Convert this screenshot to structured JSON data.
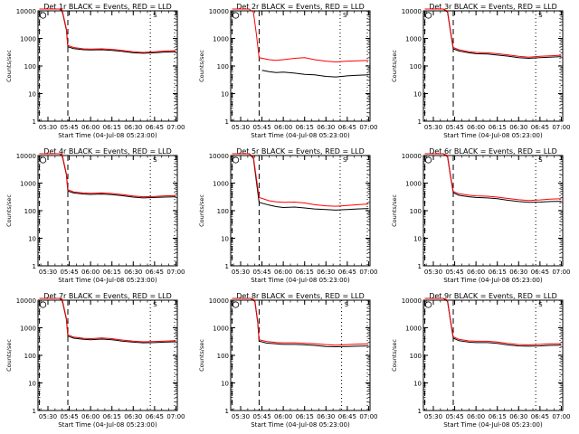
{
  "chart_data": [
    {
      "type": "line",
      "title": "Det 1r BLACK = Events, RED = LLD",
      "ylabel": "Counts/sec",
      "xlabel": "Start Time (04-Jul-08 05:23:00)",
      "yscale": "log",
      "ylim": [
        1,
        10000
      ],
      "yticks": [
        "1",
        "10",
        "100",
        "1000",
        "10000"
      ],
      "xticks": [
        "05:30",
        "05:45",
        "06:00",
        "06:15",
        "06:30",
        "06:45",
        "07:00"
      ],
      "markers": {
        "saa_end": "05:44",
        "saa_start": "06:42",
        "label": "S"
      },
      "series": [
        {
          "color": "#000000",
          "x": [
            "05:24",
            "05:30",
            "05:38",
            "05:40",
            "05:43",
            "05:44",
            "05:48",
            "05:55",
            "06:00",
            "06:08",
            "06:15",
            "06:22",
            "06:30",
            "06:37",
            "06:45",
            "06:52",
            "07:00"
          ],
          "y": [
            12000,
            12000,
            12000,
            10000,
            2000,
            500,
            430,
            390,
            380,
            390,
            370,
            340,
            300,
            290,
            300,
            320,
            330
          ]
        },
        {
          "color": "#ff0000",
          "x": [
            "05:24",
            "05:30",
            "05:38",
            "05:40",
            "05:43",
            "05:44",
            "05:48",
            "05:55",
            "06:00",
            "06:08",
            "06:15",
            "06:22",
            "06:30",
            "06:37",
            "06:45",
            "06:52",
            "07:00"
          ],
          "y": [
            12000,
            12000,
            12000,
            11000,
            2200,
            560,
            470,
            420,
            410,
            420,
            400,
            370,
            330,
            310,
            330,
            350,
            360
          ]
        }
      ]
    },
    {
      "type": "line",
      "title": "Det 2r BLACK = Events, RED = LLD",
      "ylabel": "Counts/sec",
      "xlabel": "Start Time (04-Jul-08 05:23:00)",
      "yscale": "log",
      "ylim": [
        1,
        10000
      ],
      "yticks": [
        "1",
        "10",
        "100",
        "1000",
        "10000"
      ],
      "xticks": [
        "05:30",
        "05:45",
        "06:00",
        "06:15",
        "06:30",
        "06:45",
        "07:00"
      ],
      "markers": {
        "saa_end": "05:43",
        "saa_start": "06:40",
        "label": "S"
      },
      "series": [
        {
          "color": "#000000",
          "x": [
            "05:45",
            "05:50",
            "05:55",
            "06:00",
            "06:08",
            "06:15",
            "06:22",
            "06:30",
            "06:37",
            "06:45",
            "06:52",
            "07:00"
          ],
          "y": [
            70,
            62,
            58,
            60,
            55,
            50,
            48,
            42,
            40,
            44,
            46,
            48
          ]
        },
        {
          "color": "#ff0000",
          "x": [
            "05:24",
            "05:30",
            "05:36",
            "05:39",
            "05:41",
            "05:43",
            "05:50",
            "05:55",
            "06:00",
            "06:08",
            "06:15",
            "06:22",
            "06:30",
            "06:37",
            "06:45",
            "06:52",
            "07:00"
          ],
          "y": [
            12000,
            12000,
            12000,
            9000,
            1500,
            200,
            170,
            160,
            170,
            190,
            200,
            170,
            150,
            140,
            150,
            155,
            160
          ]
        }
      ]
    },
    {
      "type": "line",
      "title": "Det 3r BLACK = Events, RED = LLD",
      "ylabel": "Counts/sec",
      "xlabel": "Start Time (04-Jul-08 05:23:00)",
      "yscale": "log",
      "ylim": [
        1,
        10000
      ],
      "yticks": [
        "1",
        "10",
        "100",
        "1000",
        "10000"
      ],
      "xticks": [
        "05:30",
        "05:45",
        "06:00",
        "06:15",
        "06:30",
        "06:45",
        "07:00"
      ],
      "markers": {
        "saa_end": "05:44",
        "saa_start": "06:42",
        "label": "S"
      },
      "series": [
        {
          "color": "#000000",
          "x": [
            "05:24",
            "05:30",
            "05:37",
            "05:40",
            "05:42",
            "05:44",
            "05:48",
            "05:55",
            "06:00",
            "06:08",
            "06:15",
            "06:22",
            "06:30",
            "06:37",
            "06:45",
            "06:52",
            "07:00"
          ],
          "y": [
            12000,
            12000,
            12000,
            9000,
            1800,
            420,
            350,
            300,
            280,
            270,
            250,
            230,
            200,
            190,
            200,
            210,
            220
          ]
        },
        {
          "color": "#ff0000",
          "x": [
            "05:24",
            "05:30",
            "05:37",
            "05:40",
            "05:42",
            "05:44",
            "05:48",
            "05:55",
            "06:00",
            "06:08",
            "06:15",
            "06:22",
            "06:30",
            "06:37",
            "06:45",
            "06:52",
            "07:00"
          ],
          "y": [
            12000,
            12000,
            12000,
            10000,
            2000,
            470,
            390,
            330,
            310,
            300,
            280,
            255,
            225,
            210,
            225,
            235,
            245
          ]
        }
      ]
    },
    {
      "type": "line",
      "title": "Det 4r BLACK = Events, RED = LLD",
      "ylabel": "Counts/sec",
      "xlabel": "Start Time (04-Jul-08 05:23:00)",
      "yscale": "log",
      "ylim": [
        1,
        10000
      ],
      "yticks": [
        "1",
        "10",
        "100",
        "1000",
        "10000"
      ],
      "xticks": [
        "05:30",
        "05:45",
        "06:00",
        "06:15",
        "06:30",
        "06:45",
        "07:00"
      ],
      "markers": {
        "saa_end": "05:44",
        "saa_start": "06:42",
        "label": "S"
      },
      "series": [
        {
          "color": "#000000",
          "x": [
            "05:24",
            "05:30",
            "05:38",
            "05:40",
            "05:43",
            "05:44",
            "05:48",
            "05:55",
            "06:00",
            "06:08",
            "06:15",
            "06:22",
            "06:30",
            "06:37",
            "06:45",
            "06:52",
            "07:00"
          ],
          "y": [
            12000,
            12000,
            12000,
            10000,
            2000,
            520,
            440,
            400,
            390,
            400,
            380,
            350,
            310,
            290,
            300,
            310,
            320
          ]
        },
        {
          "color": "#ff0000",
          "x": [
            "05:24",
            "05:30",
            "05:38",
            "05:40",
            "05:43",
            "05:44",
            "05:48",
            "05:55",
            "06:00",
            "06:08",
            "06:15",
            "06:22",
            "06:30",
            "06:37",
            "06:45",
            "06:52",
            "07:00"
          ],
          "y": [
            12000,
            12000,
            12000,
            11000,
            2200,
            580,
            480,
            440,
            430,
            440,
            420,
            385,
            340,
            320,
            330,
            345,
            355
          ]
        }
      ]
    },
    {
      "type": "line",
      "title": "Det 5r BLACK = Events, RED = LLD",
      "ylabel": "Counts/sec",
      "xlabel": "Start Time (04-Jul-08 05:23:00)",
      "yscale": "log",
      "ylim": [
        1,
        10000
      ],
      "yticks": [
        "1",
        "10",
        "100",
        "1000",
        "10000"
      ],
      "xticks": [
        "05:30",
        "05:45",
        "06:00",
        "06:15",
        "06:30",
        "06:45",
        "07:00"
      ],
      "markers": {
        "saa_end": "05:43",
        "saa_start": "06:40",
        "label": "S"
      },
      "series": [
        {
          "color": "#000000",
          "x": [
            "05:24",
            "05:30",
            "05:36",
            "05:39",
            "05:41",
            "05:43",
            "05:50",
            "05:55",
            "06:00",
            "06:08",
            "06:15",
            "06:22",
            "06:30",
            "06:37",
            "06:45",
            "06:52",
            "07:00"
          ],
          "y": [
            12000,
            12000,
            12000,
            8000,
            1200,
            200,
            160,
            140,
            130,
            135,
            125,
            115,
            110,
            105,
            110,
            115,
            120
          ]
        },
        {
          "color": "#ff0000",
          "x": [
            "05:24",
            "05:30",
            "05:36",
            "05:39",
            "05:41",
            "05:43",
            "05:50",
            "05:55",
            "06:00",
            "06:08",
            "06:15",
            "06:22",
            "06:30",
            "06:37",
            "06:45",
            "06:52",
            "07:00"
          ],
          "y": [
            12000,
            12000,
            12000,
            9000,
            1600,
            300,
            230,
            210,
            200,
            205,
            190,
            165,
            150,
            145,
            155,
            165,
            175
          ]
        }
      ]
    },
    {
      "type": "line",
      "title": "Det 6r BLACK = Events, RED = LLD",
      "ylabel": "Counts/sec",
      "xlabel": "Start Time (04-Jul-08 05:23:00)",
      "yscale": "log",
      "ylim": [
        1,
        10000
      ],
      "yticks": [
        "1",
        "10",
        "100",
        "1000",
        "10000"
      ],
      "xticks": [
        "05:30",
        "05:45",
        "06:00",
        "06:15",
        "06:30",
        "06:45",
        "07:00"
      ],
      "markers": {
        "saa_end": "05:44",
        "saa_start": "06:42",
        "label": "S"
      },
      "series": [
        {
          "color": "#000000",
          "x": [
            "05:24",
            "05:30",
            "05:37",
            "05:40",
            "05:42",
            "05:44",
            "05:48",
            "05:55",
            "06:00",
            "06:08",
            "06:15",
            "06:22",
            "06:30",
            "06:37",
            "06:45",
            "06:52",
            "07:00"
          ],
          "y": [
            12000,
            12000,
            12000,
            9000,
            1800,
            450,
            360,
            320,
            300,
            290,
            270,
            240,
            215,
            200,
            205,
            215,
            220
          ]
        },
        {
          "color": "#ff0000",
          "x": [
            "05:24",
            "05:30",
            "05:37",
            "05:40",
            "05:42",
            "05:44",
            "05:48",
            "05:55",
            "06:00",
            "06:08",
            "06:15",
            "06:22",
            "06:30",
            "06:37",
            "06:45",
            "06:52",
            "07:00"
          ],
          "y": [
            12000,
            12000,
            12000,
            10000,
            2000,
            500,
            410,
            365,
            345,
            335,
            310,
            280,
            250,
            235,
            245,
            260,
            270
          ]
        }
      ]
    },
    {
      "type": "line",
      "title": "Det 7r BLACK = Events, RED = LLD",
      "ylabel": "Counts/sec",
      "xlabel": "Start Time (04-Jul-08 05:23:00)",
      "yscale": "log",
      "ylim": [
        1,
        10000
      ],
      "yticks": [
        "1",
        "10",
        "100",
        "1000",
        "10000"
      ],
      "xticks": [
        "05:30",
        "05:45",
        "06:00",
        "06:15",
        "06:30",
        "06:45",
        "07:00"
      ],
      "markers": {
        "saa_end": "05:44",
        "saa_start": "06:42",
        "label": "S"
      },
      "series": [
        {
          "color": "#000000",
          "x": [
            "05:24",
            "05:30",
            "05:38",
            "05:40",
            "05:43",
            "05:44",
            "05:48",
            "05:55",
            "06:00",
            "06:08",
            "06:15",
            "06:22",
            "06:30",
            "06:37",
            "06:45",
            "06:52",
            "07:00"
          ],
          "y": [
            12000,
            12000,
            12000,
            10000,
            2000,
            500,
            420,
            380,
            370,
            390,
            370,
            330,
            300,
            285,
            290,
            300,
            310
          ]
        },
        {
          "color": "#ff0000",
          "x": [
            "05:24",
            "05:30",
            "05:38",
            "05:40",
            "05:43",
            "05:44",
            "05:48",
            "05:55",
            "06:00",
            "06:08",
            "06:15",
            "06:22",
            "06:30",
            "06:37",
            "06:45",
            "06:52",
            "07:00"
          ],
          "y": [
            12000,
            12000,
            12000,
            11000,
            2200,
            560,
            460,
            415,
            405,
            425,
            405,
            360,
            330,
            310,
            320,
            330,
            340
          ]
        }
      ]
    },
    {
      "type": "line",
      "title": "Det 8r BLACK = Events, RED = LLD",
      "ylabel": "Counts/sec",
      "xlabel": "Start Time (04-Jul-08 05:23:00)",
      "yscale": "log",
      "ylim": [
        1,
        10000
      ],
      "yticks": [
        "1",
        "10",
        "100",
        "1000",
        "10000"
      ],
      "xticks": [
        "05:30",
        "05:45",
        "06:00",
        "06:15",
        "06:30",
        "06:45",
        "07:00"
      ],
      "markers": {
        "saa_end": "05:43",
        "saa_start": "06:41",
        "label": "S"
      },
      "series": [
        {
          "color": "#000000",
          "x": [
            "05:24",
            "05:30",
            "05:37",
            "05:40",
            "05:42",
            "05:43",
            "05:48",
            "05:55",
            "06:00",
            "06:08",
            "06:15",
            "06:22",
            "06:30",
            "06:37",
            "06:45",
            "06:52",
            "07:00"
          ],
          "y": [
            12000,
            12000,
            12000,
            9000,
            1500,
            330,
            280,
            260,
            250,
            250,
            240,
            230,
            210,
            205,
            210,
            215,
            220
          ]
        },
        {
          "color": "#ff0000",
          "x": [
            "05:24",
            "05:30",
            "05:37",
            "05:40",
            "05:42",
            "05:43",
            "05:48",
            "05:55",
            "06:00",
            "06:08",
            "06:15",
            "06:22",
            "06:30",
            "06:37",
            "06:45",
            "06:52",
            "07:00"
          ],
          "y": [
            12000,
            12000,
            12000,
            10000,
            1700,
            370,
            320,
            295,
            285,
            285,
            275,
            265,
            245,
            235,
            245,
            255,
            260
          ]
        }
      ]
    },
    {
      "type": "line",
      "title": "Det 9r BLACK = Events, RED = LLD",
      "ylabel": "Counts/sec",
      "xlabel": "Start Time (04-Jul-08 05:23:00)",
      "yscale": "log",
      "ylim": [
        1,
        10000
      ],
      "yticks": [
        "1",
        "10",
        "100",
        "1000",
        "10000"
      ],
      "xticks": [
        "05:30",
        "05:45",
        "06:00",
        "06:15",
        "06:30",
        "06:45",
        "07:00"
      ],
      "markers": {
        "saa_end": "05:44",
        "saa_start": "06:42",
        "label": "S"
      },
      "series": [
        {
          "color": "#000000",
          "x": [
            "05:24",
            "05:30",
            "05:37",
            "05:40",
            "05:42",
            "05:44",
            "05:48",
            "05:55",
            "06:00",
            "06:08",
            "06:15",
            "06:22",
            "06:30",
            "06:37",
            "06:45",
            "06:52",
            "07:00"
          ],
          "y": [
            12000,
            12000,
            12000,
            9000,
            1800,
            420,
            340,
            300,
            290,
            290,
            270,
            240,
            220,
            215,
            220,
            230,
            235
          ]
        },
        {
          "color": "#ff0000",
          "x": [
            "05:24",
            "05:30",
            "05:37",
            "05:40",
            "05:42",
            "05:44",
            "05:48",
            "05:55",
            "06:00",
            "06:08",
            "06:15",
            "06:22",
            "06:30",
            "06:37",
            "06:45",
            "06:52",
            "07:00"
          ],
          "y": [
            12000,
            12000,
            12000,
            10000,
            2000,
            470,
            380,
            335,
            325,
            325,
            305,
            270,
            245,
            240,
            250,
            260,
            265
          ]
        }
      ]
    }
  ]
}
